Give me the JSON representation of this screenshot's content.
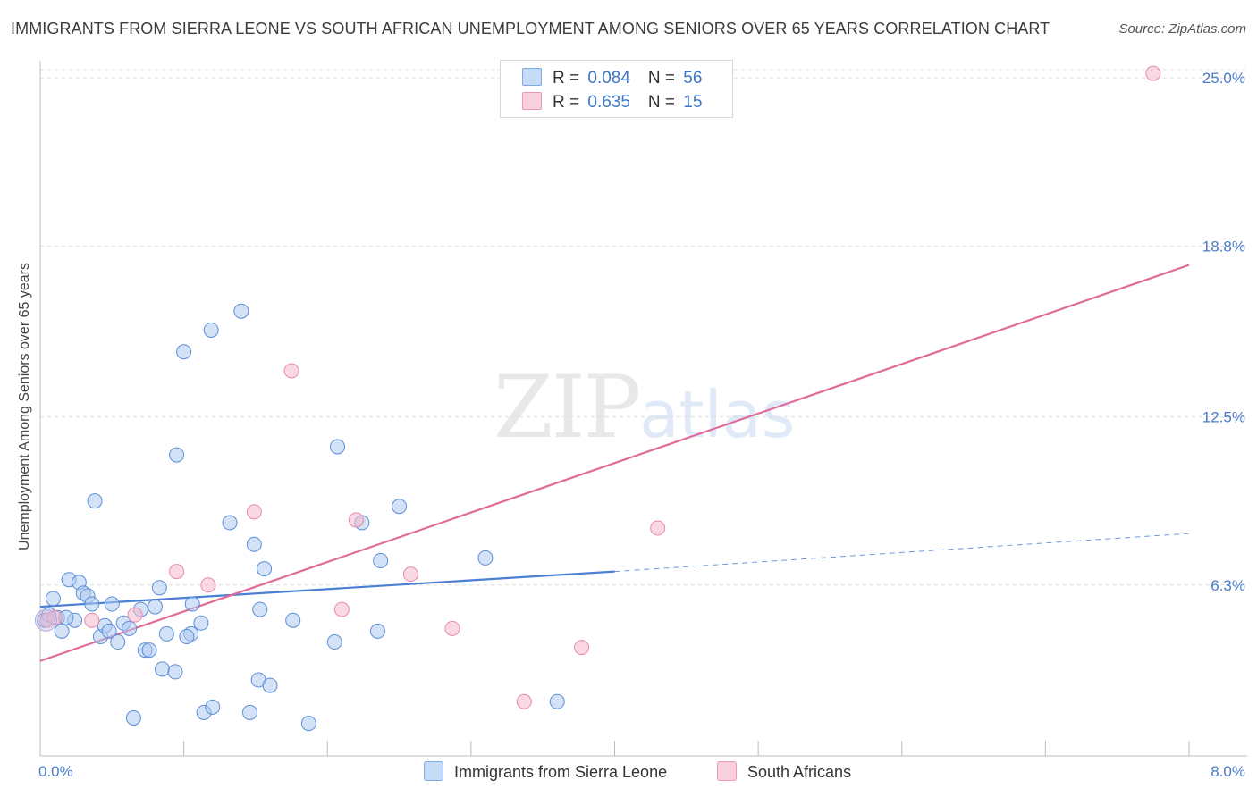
{
  "chart_data": {
    "type": "scatter",
    "title": "IMMIGRANTS FROM SIERRA LEONE VS SOUTH AFRICAN UNEMPLOYMENT AMONG SENIORS OVER 65 YEARS CORRELATION CHART",
    "source": "Source: ZipAtlas.com",
    "xlabel": "",
    "ylabel": "Unemployment Among Seniors over 65 years",
    "xlim": [
      0,
      8
    ],
    "ylim": [
      0,
      25.5
    ],
    "x_tick_labels": [
      {
        "value": 0,
        "label": "0.0%"
      },
      {
        "value": 8,
        "label": "8.0%"
      }
    ],
    "y_tick_labels": [
      {
        "value": 25.0,
        "label": "25.0%"
      },
      {
        "value": 18.8,
        "label": "18.8%"
      },
      {
        "value": 12.5,
        "label": "12.5%"
      },
      {
        "value": 6.3,
        "label": "6.3%"
      }
    ],
    "watermark": {
      "part1": "ZIP",
      "part2": "atlas"
    },
    "colors": {
      "blue": "#4a7fd4",
      "blue_fill": "#aecbf0",
      "pink": "#e06b99",
      "pink_fill": "#f7b9cd",
      "grid": "#dcdcdc"
    },
    "legend": [
      {
        "r_label": "R = ",
        "r_value": "0.084",
        "n_label": "N = ",
        "n_value": "56"
      },
      {
        "r_label": "R = ",
        "r_value": "0.635",
        "n_label": "N = ",
        "n_value": "15"
      }
    ],
    "series": [
      {
        "name": "Immigrants from Sierra Leone",
        "color": "blue",
        "trend": {
          "x0": 0,
          "y0": 5.5,
          "x1": 4.0,
          "y1": 6.8,
          "dash_to_x": 8.0,
          "dash_to_y": 8.2
        },
        "points": [
          [
            0.03,
            5.0
          ],
          [
            0.09,
            5.8
          ],
          [
            0.12,
            5.1
          ],
          [
            0.15,
            4.6
          ],
          [
            0.2,
            6.5
          ],
          [
            0.24,
            5.0
          ],
          [
            0.27,
            6.4
          ],
          [
            0.3,
            6.0
          ],
          [
            0.33,
            5.9
          ],
          [
            0.36,
            5.6
          ],
          [
            0.38,
            9.4
          ],
          [
            0.42,
            4.4
          ],
          [
            0.45,
            4.8
          ],
          [
            0.5,
            5.6
          ],
          [
            0.54,
            4.2
          ],
          [
            0.58,
            4.9
          ],
          [
            0.62,
            4.7
          ],
          [
            0.65,
            1.4
          ],
          [
            0.7,
            5.4
          ],
          [
            0.73,
            3.9
          ],
          [
            0.76,
            3.9
          ],
          [
            0.8,
            5.5
          ],
          [
            0.83,
            6.2
          ],
          [
            0.85,
            3.2
          ],
          [
            0.88,
            4.5
          ],
          [
            0.94,
            3.1
          ],
          [
            0.95,
            11.1
          ],
          [
            1.0,
            14.9
          ],
          [
            1.05,
            4.5
          ],
          [
            1.06,
            5.6
          ],
          [
            1.12,
            4.9
          ],
          [
            1.14,
            1.6
          ],
          [
            1.19,
            15.7
          ],
          [
            1.2,
            1.8
          ],
          [
            1.32,
            8.6
          ],
          [
            1.4,
            16.4
          ],
          [
            1.46,
            1.6
          ],
          [
            1.49,
            7.8
          ],
          [
            1.52,
            2.8
          ],
          [
            1.53,
            5.4
          ],
          [
            1.56,
            6.9
          ],
          [
            1.6,
            2.6
          ],
          [
            1.76,
            5.0
          ],
          [
            1.87,
            1.2
          ],
          [
            2.05,
            4.2
          ],
          [
            2.07,
            11.4
          ],
          [
            2.24,
            8.6
          ],
          [
            2.35,
            4.6
          ],
          [
            2.37,
            7.2
          ],
          [
            2.5,
            9.2
          ],
          [
            3.1,
            7.3
          ],
          [
            3.6,
            2.0
          ],
          [
            0.06,
            5.2
          ],
          [
            0.18,
            5.1
          ],
          [
            0.48,
            4.6
          ],
          [
            1.02,
            4.4
          ]
        ]
      },
      {
        "name": "South Africans",
        "color": "pink",
        "trend": {
          "x0": 0,
          "y0": 3.5,
          "x1": 8.0,
          "y1": 18.1
        },
        "points": [
          [
            0.05,
            5.0
          ],
          [
            0.1,
            5.1
          ],
          [
            0.36,
            5.0
          ],
          [
            0.66,
            5.2
          ],
          [
            0.95,
            6.8
          ],
          [
            1.17,
            6.3
          ],
          [
            1.49,
            9.0
          ],
          [
            1.75,
            14.2
          ],
          [
            2.1,
            5.4
          ],
          [
            2.2,
            8.7
          ],
          [
            2.58,
            6.7
          ],
          [
            2.87,
            4.7
          ],
          [
            3.37,
            2.0
          ],
          [
            3.77,
            4.0
          ],
          [
            4.3,
            8.4
          ]
        ]
      }
    ],
    "outlier": {
      "series": "South Africans",
      "x": 7.75,
      "y": 25.0
    }
  },
  "bottom_legend": {
    "item1": "Immigrants from Sierra Leone",
    "item2": "South Africans"
  }
}
